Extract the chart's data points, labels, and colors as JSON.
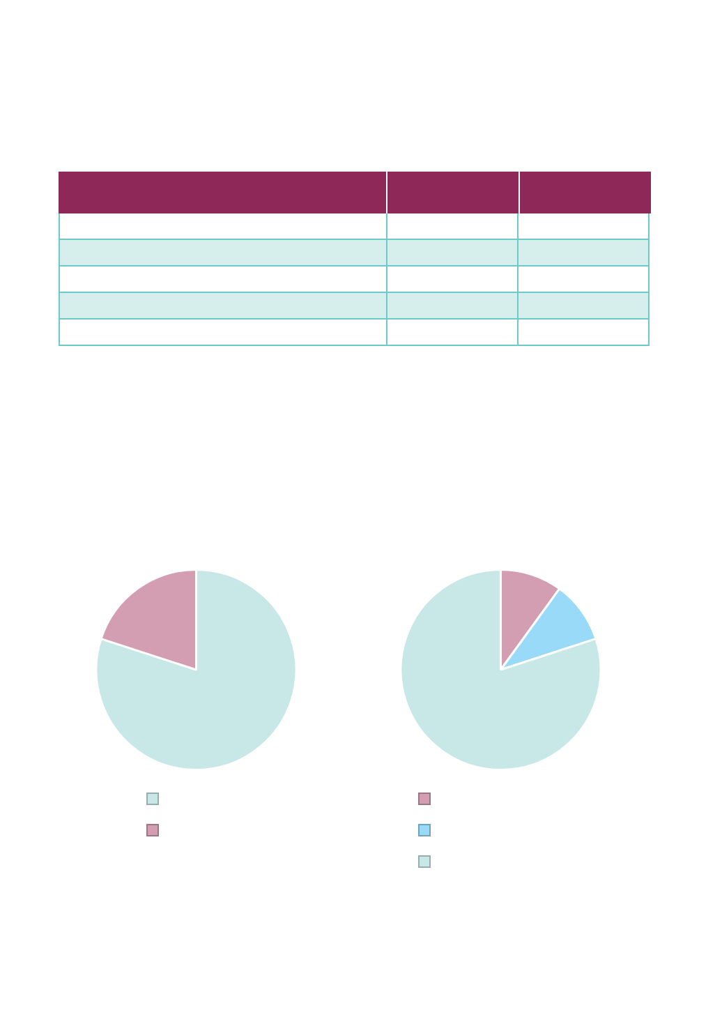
{
  "chart_data": [
    {
      "type": "pie",
      "categories": [
        null,
        null
      ],
      "values": [
        80,
        20
      ],
      "colors": [
        "#c8e8e7",
        "#d39db2"
      ]
    },
    {
      "type": "pie",
      "categories": [
        null,
        null,
        null
      ],
      "values": [
        10,
        10,
        80
      ],
      "colors": [
        "#d39db2",
        "#98daf8",
        "#c8e8e7"
      ]
    }
  ]
}
